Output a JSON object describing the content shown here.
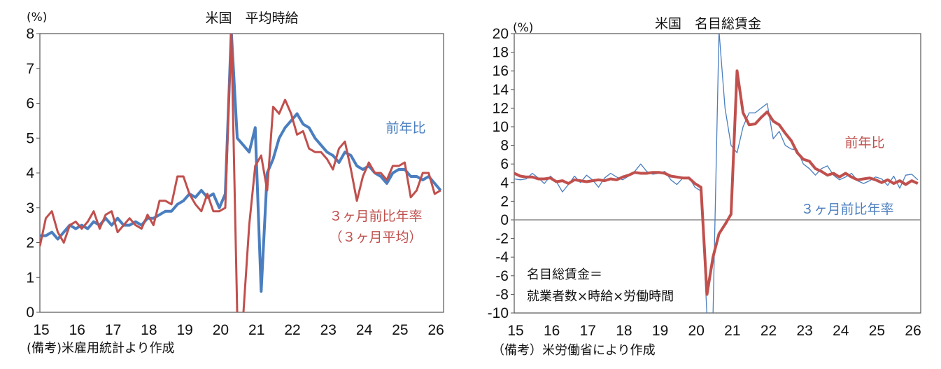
{
  "chart_data": [
    {
      "type": "line",
      "title": "米国　平均時給",
      "ylabel": "(%)",
      "ylim": [
        0,
        8
      ],
      "yticks": [
        0,
        1,
        2,
        3,
        4,
        5,
        6,
        7,
        8
      ],
      "xlim": [
        2015.0,
        2026.25
      ],
      "xtick_labels": [
        "15",
        "16",
        "17",
        "18",
        "19",
        "20",
        "21",
        "22",
        "23",
        "24",
        "25",
        "26"
      ],
      "grid": false,
      "source": "(備考)米雇用統計より作成",
      "x_start": 2015.0,
      "x_step_years": 0.1667,
      "series": [
        {
          "name": "前年比",
          "label_lines": [
            "前年比"
          ],
          "color": "#4a7ebf",
          "width": "thick",
          "values": [
            2.2,
            2.2,
            2.3,
            2.1,
            2.3,
            2.5,
            2.4,
            2.5,
            2.4,
            2.6,
            2.5,
            2.7,
            2.5,
            2.7,
            2.5,
            2.5,
            2.6,
            2.5,
            2.7,
            2.7,
            2.8,
            2.9,
            2.9,
            3.1,
            3.2,
            3.4,
            3.3,
            3.5,
            3.3,
            3.4,
            3.0,
            3.4,
            8.2,
            5.0,
            4.8,
            4.6,
            5.3,
            0.6,
            4.0,
            4.4,
            5.0,
            5.3,
            5.5,
            5.7,
            5.4,
            5.3,
            5.0,
            4.8,
            4.6,
            4.5,
            4.3,
            4.6,
            4.5,
            4.2,
            4.1,
            4.2,
            4.0,
            3.9,
            3.7,
            4.0,
            4.1,
            4.1,
            3.9,
            3.9,
            3.8,
            3.9,
            3.7,
            3.5
          ]
        },
        {
          "name": "３ヶ月前比年率（３ヶ月平均）",
          "label_lines": [
            "３ヶ月前比年率",
            "（３ヶ月平均）"
          ],
          "color": "#c0504d",
          "width": "medium",
          "values": [
            1.9,
            2.7,
            2.9,
            2.3,
            2.0,
            2.5,
            2.6,
            2.4,
            2.6,
            2.9,
            2.4,
            2.8,
            2.9,
            2.3,
            2.5,
            2.7,
            2.5,
            2.4,
            2.8,
            2.5,
            3.2,
            3.2,
            3.1,
            3.9,
            3.9,
            3.4,
            3.1,
            2.9,
            3.4,
            2.9,
            2.9,
            3.0,
            10.0,
            -2.0,
            -1.0,
            2.5,
            4.2,
            4.5,
            3.5,
            5.9,
            5.7,
            6.1,
            5.7,
            5.1,
            5.2,
            4.7,
            4.6,
            4.6,
            4.4,
            4.1,
            4.7,
            4.9,
            4.1,
            3.2,
            3.9,
            4.3,
            4.0,
            4.0,
            3.8,
            4.2,
            4.2,
            4.3,
            3.3,
            3.5,
            4.0,
            4.0,
            3.4,
            3.5
          ]
        }
      ]
    },
    {
      "type": "line",
      "title": "米国　名目総賃金",
      "ylabel": "(%)",
      "ylim": [
        -10,
        20
      ],
      "yticks": [
        -10,
        -8,
        -6,
        -4,
        -2,
        0,
        2,
        4,
        6,
        8,
        10,
        12,
        14,
        16,
        18,
        20
      ],
      "xlim": [
        2015.0,
        2026.25
      ],
      "xtick_labels": [
        "15",
        "16",
        "17",
        "18",
        "19",
        "20",
        "21",
        "22",
        "23",
        "24",
        "25",
        "26"
      ],
      "grid": false,
      "annotation": [
        "名目総賃金＝",
        "就業者数×時給×労働時間"
      ],
      "source": "（備考）米労働省により作成",
      "x_start": 2015.0,
      "x_step_years": 0.1667,
      "series": [
        {
          "name": "３ヶ月前比年率",
          "label_lines": [
            "３ヶ月前比年率"
          ],
          "color": "#4a7ebf",
          "width": "thin",
          "values": [
            4.4,
            4.3,
            4.4,
            5.0,
            4.5,
            3.9,
            4.7,
            4.1,
            3.0,
            3.8,
            4.7,
            4.0,
            4.8,
            4.3,
            3.5,
            4.5,
            5.0,
            4.6,
            4.3,
            4.7,
            5.2,
            6.0,
            5.2,
            4.9,
            5.0,
            5.2,
            4.3,
            3.8,
            4.5,
            4.6,
            3.5,
            3.1,
            -25,
            -12,
            25,
            12,
            8.0,
            7.2,
            10.0,
            11.5,
            11.5,
            12.0,
            12.5,
            8.7,
            9.5,
            8.0,
            7.6,
            7.5,
            6.0,
            5.5,
            4.8,
            5.5,
            5.8,
            4.8,
            4.3,
            4.6,
            5.0,
            4.2,
            3.9,
            4.2,
            4.6,
            4.4,
            3.7,
            4.7,
            3.4,
            4.8,
            4.9,
            4.3
          ]
        },
        {
          "name": "前年比",
          "label_lines": [
            "前年比"
          ],
          "color": "#c0504d",
          "width": "thick",
          "values": [
            5.0,
            4.7,
            4.6,
            4.6,
            4.4,
            4.4,
            4.5,
            4.1,
            4.2,
            3.9,
            4.3,
            4.2,
            4.1,
            4.2,
            4.3,
            4.2,
            4.4,
            4.3,
            4.6,
            4.8,
            5.1,
            5.0,
            5.0,
            5.1,
            5.1,
            5.0,
            4.7,
            4.6,
            4.5,
            4.5,
            3.9,
            3.5,
            -8.0,
            -4.0,
            -1.5,
            -0.5,
            0.6,
            16.0,
            11.5,
            10.2,
            10.3,
            11.0,
            11.6,
            10.6,
            10.2,
            9.3,
            8.5,
            7.2,
            6.5,
            6.3,
            5.5,
            5.2,
            4.8,
            5.0,
            4.6,
            5.0,
            4.6,
            4.3,
            4.4,
            4.5,
            4.3,
            4.0,
            4.3,
            3.9,
            4.2,
            3.8,
            4.2,
            3.9
          ]
        }
      ]
    }
  ]
}
